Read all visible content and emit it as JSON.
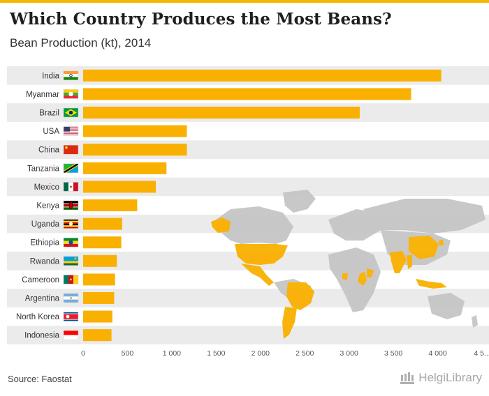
{
  "header": {
    "title": "Which Country Produces the Most Beans?",
    "subtitle": "Bean Production (kt), 2014"
  },
  "footer": {
    "source": "Source: Faostat",
    "brand": "HelgiLibrary"
  },
  "icons": {
    "logo": "library-columns-icon",
    "map": "world-map-icon"
  },
  "colors": {
    "bar": "#f9b000",
    "highlight": "#f9b000",
    "map_land": "#c6c6c6",
    "band": "#ebebeb",
    "title": "#1f1f1f"
  },
  "chart_data": {
    "type": "bar",
    "orientation": "horizontal",
    "title": "Which Country Produces the Most Beans?",
    "subtitle": "Bean Production (kt), 2014",
    "categories": [
      "India",
      "Myanmar",
      "Brazil",
      "USA",
      "China",
      "Tanzania",
      "Mexico",
      "Kenya",
      "Uganda",
      "Ethiopia",
      "Rwanda",
      "Cameroon",
      "Argentina",
      "North Korea",
      "Indonesia"
    ],
    "values": [
      4040,
      3700,
      3120,
      1170,
      1170,
      940,
      820,
      610,
      440,
      430,
      380,
      360,
      350,
      330,
      320
    ],
    "unit": "kt",
    "xlim": [
      0,
      4500
    ],
    "xticks": [
      0,
      500,
      1000,
      1500,
      2000,
      2500,
      3000,
      3500,
      4000,
      4500
    ],
    "xtick_labels": [
      "0",
      "500",
      "1 000",
      "1 500",
      "2 000",
      "2 500",
      "3 000",
      "3 500",
      "4 000",
      "4 5..."
    ],
    "grid": false,
    "legend": "none",
    "background_map_highlighted": [
      "USA",
      "Mexico",
      "Brazil",
      "Argentina",
      "Kenya",
      "Uganda",
      "Rwanda",
      "Tanzania",
      "Ethiopia",
      "Cameroon",
      "India",
      "Myanmar",
      "China",
      "North Korea",
      "Indonesia"
    ]
  }
}
